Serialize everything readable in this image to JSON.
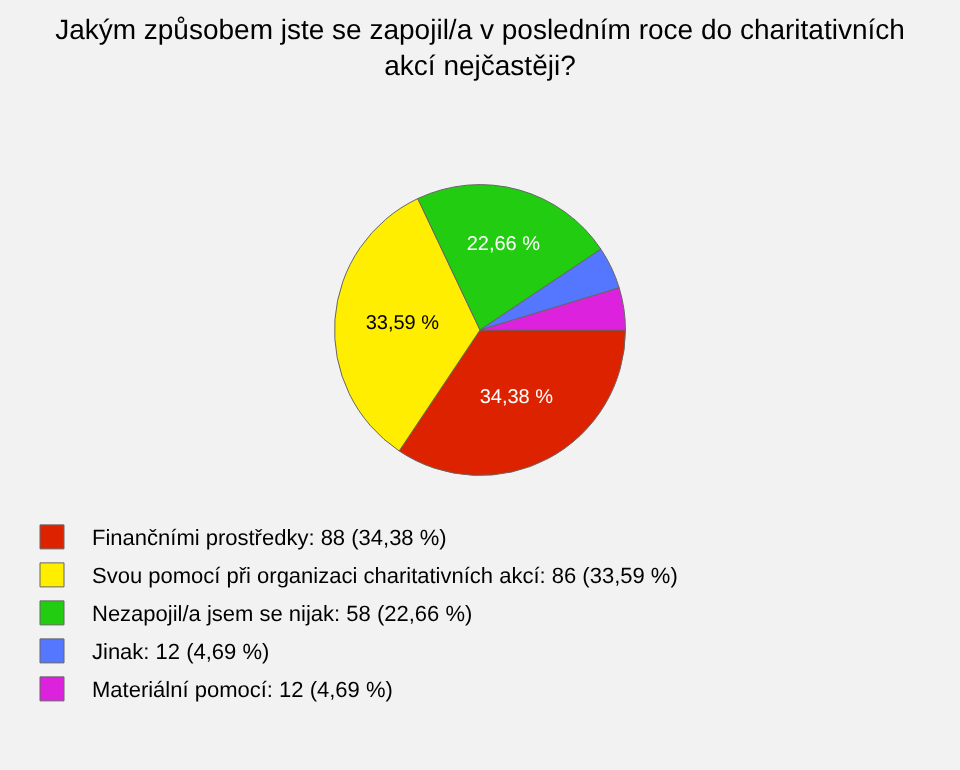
{
  "chart_data": {
    "type": "pie",
    "title": "Jakým způsobem jste se zapojil/a v posledním roce do charitativních akcí nejčastěji?",
    "categories": [
      "Finančními prostředky: 88 (34,38 %)",
      "Svou pomocí při organizaci charitativních akcí: 86 (33,59 %)",
      "Nezapojil/a jsem se nijak: 58 (22,66 %)",
      "Jinak: 12 (4,69 %)",
      "Materiální pomocí: 12 (4,69 %)"
    ],
    "values": [
      34.38,
      33.59,
      22.66,
      4.69,
      4.69
    ],
    "colors": [
      "#dd2200",
      "#ffee00",
      "#22cc11",
      "#5577ff",
      "#dd22dd"
    ],
    "value_labels": [
      "34,38 %",
      "33,59 %",
      "22,66 %",
      null,
      null
    ],
    "legend": "bottom left"
  }
}
